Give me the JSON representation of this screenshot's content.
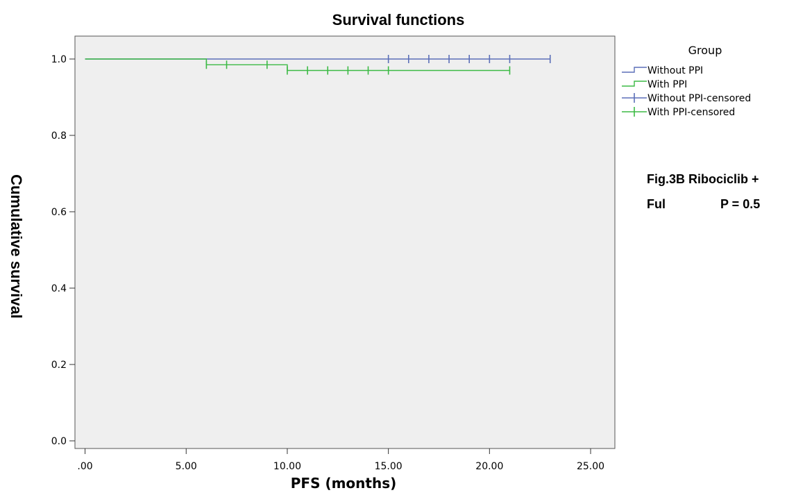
{
  "chart_data": {
    "type": "line",
    "title": "Survival functions",
    "xlabel": "PFS (months)",
    "ylabel": "Cumulative survival",
    "xlim": [
      -0.5,
      26.2
    ],
    "ylim": [
      -0.02,
      1.06
    ],
    "xticks": [
      0,
      5,
      10,
      15,
      20,
      25
    ],
    "xtick_labels": [
      ".00",
      "5.00",
      "10.00",
      "15.00",
      "20.00",
      "25.00"
    ],
    "yticks": [
      0.0,
      0.2,
      0.4,
      0.6,
      0.8,
      1.0
    ],
    "ytick_labels": [
      "0.0",
      "0.2",
      "0.4",
      "0.6",
      "0.8",
      "1.0"
    ],
    "grid": false,
    "legend_title": "Group",
    "legend_position": "right",
    "legend": [
      {
        "label": "Without PPI",
        "kind": "step",
        "color": "#5b6fb8"
      },
      {
        "label": "With PPI",
        "kind": "step",
        "color": "#3cba45"
      },
      {
        "label": "Without PPI-censored",
        "kind": "censor",
        "color": "#5b6fb8"
      },
      {
        "label": "With PPI-censored",
        "kind": "censor",
        "color": "#3cba45"
      }
    ],
    "series": [
      {
        "name": "Without PPI",
        "color": "#5b6fb8",
        "steps": [
          [
            0,
            1.0
          ],
          [
            23,
            1.0
          ]
        ],
        "censored": [
          [
            15,
            1.0
          ],
          [
            16,
            1.0
          ],
          [
            17,
            1.0
          ],
          [
            18,
            1.0
          ],
          [
            19,
            1.0
          ],
          [
            20,
            1.0
          ],
          [
            21,
            1.0
          ],
          [
            23,
            1.0
          ]
        ]
      },
      {
        "name": "With PPI",
        "color": "#3cba45",
        "steps": [
          [
            0,
            1.0
          ],
          [
            6,
            1.0
          ],
          [
            6,
            0.985
          ],
          [
            10,
            0.985
          ],
          [
            10,
            0.97
          ],
          [
            21,
            0.97
          ]
        ],
        "censored": [
          [
            6,
            0.985
          ],
          [
            7,
            0.985
          ],
          [
            9,
            0.985
          ],
          [
            10,
            0.97
          ],
          [
            11,
            0.97
          ],
          [
            12,
            0.97
          ],
          [
            13,
            0.97
          ],
          [
            14,
            0.97
          ],
          [
            15,
            0.97
          ],
          [
            21,
            0.97
          ]
        ]
      }
    ],
    "annotation": [
      "Fig.3B Ribociclib +",
      "Ful",
      "P = 0.5"
    ],
    "colors": {
      "plot_background": "#efefef",
      "axis": "#333333"
    }
  }
}
